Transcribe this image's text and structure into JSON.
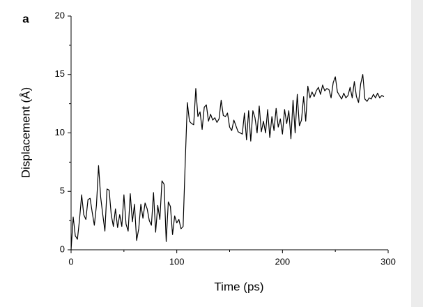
{
  "chart_data": {
    "type": "line",
    "panel_label": "a",
    "x_label": "Time (ps)",
    "y_label": "Displacement (Å)",
    "xlim": [
      0,
      300
    ],
    "xticks": [
      0,
      100,
      200,
      300
    ],
    "ylim": [
      0,
      20
    ],
    "yticks": [
      0,
      5,
      10,
      15,
      20
    ],
    "series": [
      {
        "color": "#000000",
        "x": [
          0,
          2,
          4,
          6,
          8,
          10,
          12,
          14,
          16,
          18,
          20,
          22,
          24,
          26,
          28,
          30,
          32,
          34,
          36,
          38,
          40,
          42,
          44,
          46,
          48,
          50,
          52,
          54,
          56,
          58,
          60,
          62,
          64,
          66,
          68,
          70,
          72,
          74,
          76,
          78,
          80,
          82,
          84,
          86,
          88,
          90,
          92,
          94,
          96,
          98,
          100,
          102,
          104,
          106,
          108,
          110,
          112,
          114,
          116,
          118,
          120,
          122,
          124,
          126,
          128,
          130,
          132,
          134,
          136,
          138,
          140,
          142,
          144,
          146,
          148,
          150,
          152,
          154,
          156,
          158,
          160,
          162,
          164,
          166,
          168,
          170,
          172,
          174,
          176,
          178,
          180,
          182,
          184,
          186,
          188,
          190,
          192,
          194,
          196,
          198,
          200,
          202,
          204,
          206,
          208,
          210,
          212,
          214,
          216,
          218,
          220,
          222,
          224,
          226,
          228,
          230,
          232,
          234,
          236,
          238,
          240,
          242,
          244,
          246,
          248,
          250,
          252,
          254,
          256,
          258,
          260,
          262,
          264,
          266,
          268,
          270,
          272,
          274,
          276,
          278,
          280,
          282,
          284,
          286,
          288,
          290,
          292,
          294,
          296
        ],
        "values": [
          0.0,
          2.8,
          1.2,
          0.9,
          2.6,
          4.7,
          3.0,
          2.6,
          4.3,
          4.4,
          3.2,
          2.1,
          3.8,
          7.2,
          4.5,
          3.0,
          1.6,
          5.2,
          5.1,
          3.0,
          2.0,
          3.5,
          1.9,
          3.0,
          2.0,
          4.7,
          2.2,
          1.6,
          4.8,
          2.4,
          3.9,
          0.8,
          1.8,
          3.9,
          2.7,
          4.0,
          3.5,
          2.5,
          2.1,
          4.9,
          1.5,
          3.8,
          2.6,
          5.9,
          5.6,
          0.7,
          4.1,
          3.7,
          1.3,
          2.9,
          2.3,
          2.6,
          1.8,
          2.0,
          7.5,
          12.6,
          11.0,
          10.8,
          10.7,
          13.8,
          11.4,
          11.8,
          10.3,
          12.2,
          12.4,
          11.0,
          11.6,
          11.1,
          11.3,
          10.9,
          11.2,
          12.8,
          11.5,
          11.4,
          11.7,
          10.5,
          10.2,
          11.1,
          10.6,
          10.1,
          10.0,
          9.9,
          11.7,
          9.4,
          11.9,
          9.3,
          11.9,
          11.3,
          10.0,
          12.3,
          10.1,
          11.0,
          10.0,
          12.0,
          9.6,
          11.4,
          10.2,
          12.1,
          10.5,
          11.2,
          9.9,
          12.0,
          10.8,
          11.9,
          9.5,
          12.8,
          10.0,
          13.3,
          10.6,
          11.1,
          13.1,
          11.0,
          14.0,
          13.0,
          13.5,
          13.1,
          13.6,
          13.9,
          13.3,
          14.1,
          13.6,
          13.8,
          13.7,
          13.0,
          14.3,
          14.8,
          13.5,
          13.2,
          12.9,
          13.4,
          13.0,
          13.2,
          13.9,
          13.0,
          14.4,
          13.1,
          12.6,
          14.2,
          15.0,
          12.9,
          12.7,
          13.0,
          12.9,
          13.3,
          13.0,
          13.4,
          13.0,
          13.2,
          13.1
        ]
      }
    ]
  }
}
